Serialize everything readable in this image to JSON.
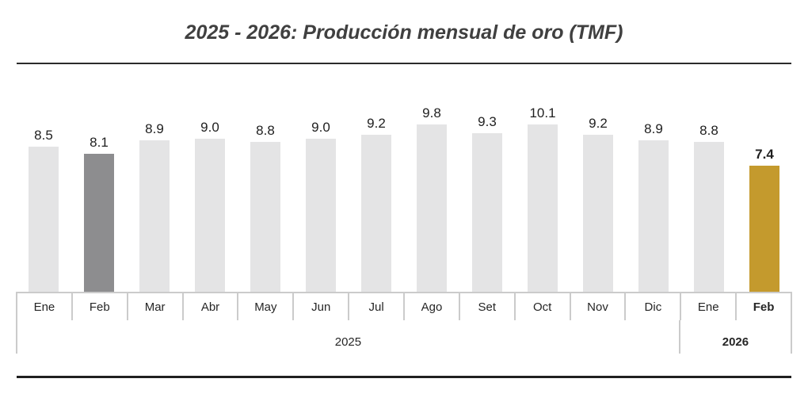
{
  "title": "2025 - 2026: Producción mensual de oro  (TMF)",
  "colors": {
    "bar_light": "#E4E4E5",
    "bar_dark_gray": "#8D8D8F",
    "bar_gold": "#C49A2D",
    "axis_line": "#CBCBCB",
    "title_text": "#404040",
    "value_label_text": "#1F1F1F",
    "top_rule": "#2B2B2B",
    "bottom_rule": "#1F1F1F"
  },
  "chart_data": {
    "type": "bar",
    "title": "2025 - 2026: Producción mensual de oro  (TMF)",
    "unit": "TMF",
    "xlabel": "",
    "ylabel": "",
    "ylim": [
      0,
      10.5
    ],
    "grid": false,
    "legend": false,
    "value_axis_visible": false,
    "categories": [
      "Ene",
      "Feb",
      "Mar",
      "Abr",
      "May",
      "Jun",
      "Jul",
      "Ago",
      "Set",
      "Oct",
      "Nov",
      "Dic",
      "Ene",
      "Feb"
    ],
    "values": [
      8.5,
      8.1,
      8.9,
      9.0,
      8.8,
      9.0,
      9.2,
      9.8,
      9.3,
      10.1,
      9.2,
      8.9,
      8.8,
      7.4
    ],
    "bars": [
      {
        "month": "Ene",
        "year": "2025",
        "value": 8.5,
        "label": "8.5",
        "color": "#E4E4E5",
        "bold": false
      },
      {
        "month": "Feb",
        "year": "2025",
        "value": 8.1,
        "label": "8.1",
        "color": "#8D8D8F",
        "bold": false
      },
      {
        "month": "Mar",
        "year": "2025",
        "value": 8.9,
        "label": "8.9",
        "color": "#E4E4E5",
        "bold": false
      },
      {
        "month": "Abr",
        "year": "2025",
        "value": 9.0,
        "label": "9.0",
        "color": "#E4E4E5",
        "bold": false
      },
      {
        "month": "May",
        "year": "2025",
        "value": 8.8,
        "label": "8.8",
        "color": "#E4E4E5",
        "bold": false
      },
      {
        "month": "Jun",
        "year": "2025",
        "value": 9.0,
        "label": "9.0",
        "color": "#E4E4E5",
        "bold": false
      },
      {
        "month": "Jul",
        "year": "2025",
        "value": 9.2,
        "label": "9.2",
        "color": "#E4E4E5",
        "bold": false
      },
      {
        "month": "Ago",
        "year": "2025",
        "value": 9.8,
        "label": "9.8",
        "color": "#E4E4E5",
        "bold": false
      },
      {
        "month": "Set",
        "year": "2025",
        "value": 9.3,
        "label": "9.3",
        "color": "#E4E4E5",
        "bold": false
      },
      {
        "month": "Oct",
        "year": "2025",
        "value": 10.1,
        "label": "10.1",
        "color": "#E4E4E5",
        "bold": false
      },
      {
        "month": "Nov",
        "year": "2025",
        "value": 9.2,
        "label": "9.2",
        "color": "#E4E4E5",
        "bold": false
      },
      {
        "month": "Dic",
        "year": "2025",
        "value": 8.9,
        "label": "8.9",
        "color": "#E4E4E5",
        "bold": false
      },
      {
        "month": "Ene",
        "year": "2026",
        "value": 8.8,
        "label": "8.8",
        "color": "#E4E4E5",
        "bold": false
      },
      {
        "month": "Feb",
        "year": "2026",
        "value": 7.4,
        "label": "7.4",
        "color": "#C49A2D",
        "bold": true
      }
    ],
    "year_groups": [
      {
        "label": "2025",
        "span": 12,
        "bold": false
      },
      {
        "label": "2026",
        "span": 2,
        "bold": true
      }
    ]
  }
}
